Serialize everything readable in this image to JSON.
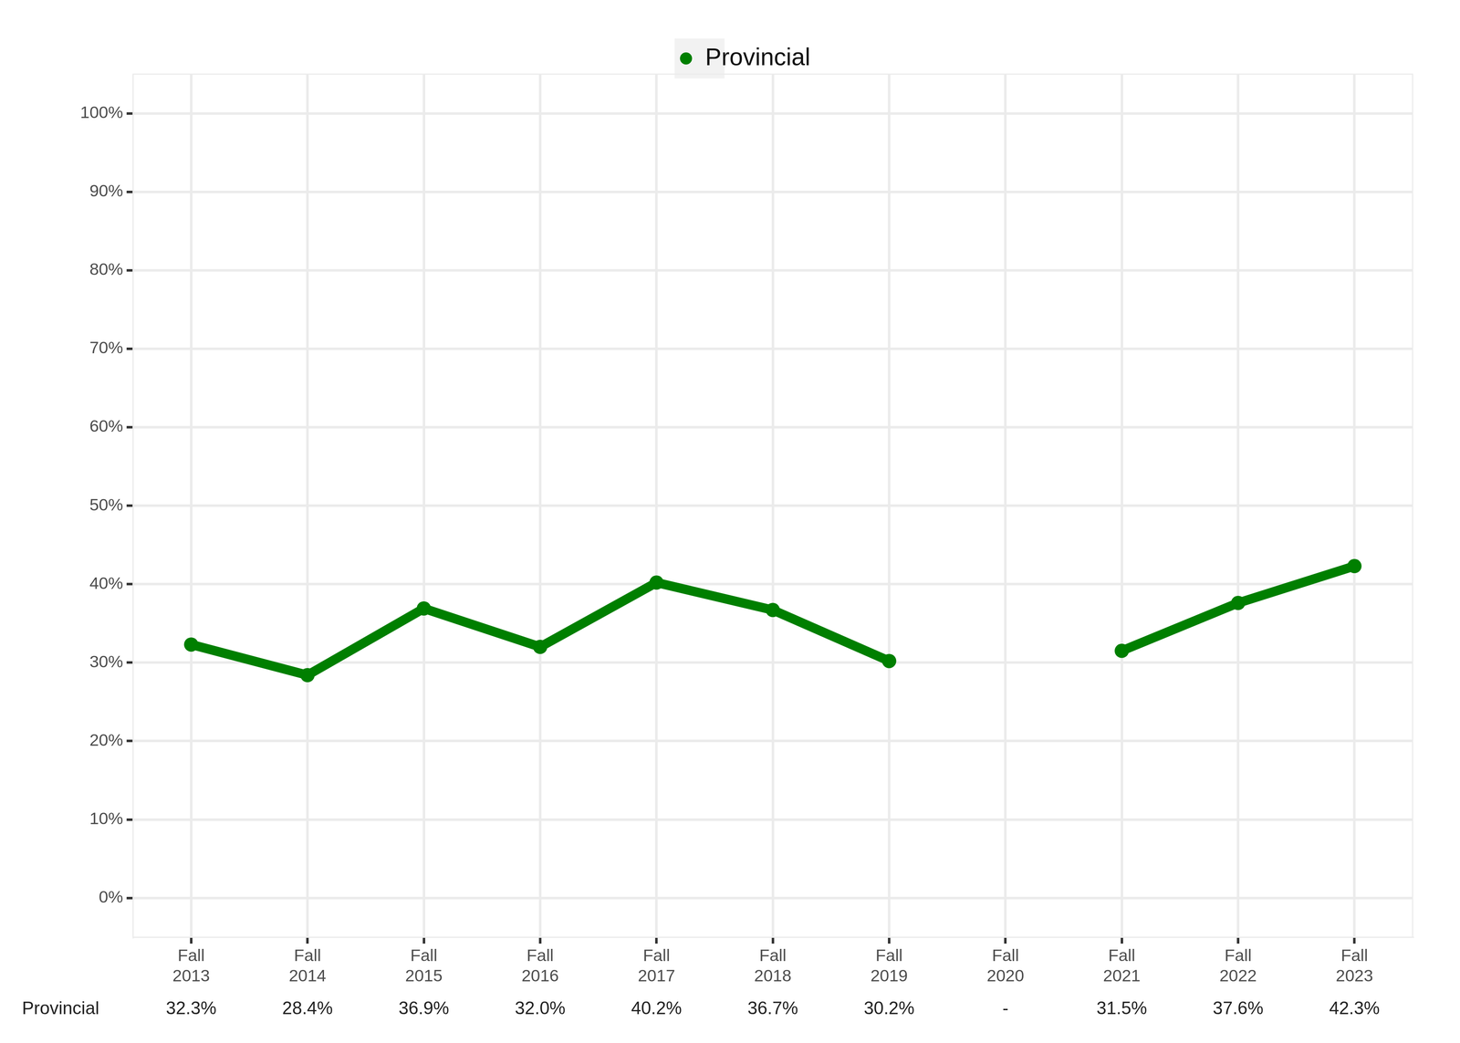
{
  "chart_data": {
    "type": "line",
    "categories": [
      "Fall 2013",
      "Fall 2014",
      "Fall 2015",
      "Fall 2016",
      "Fall 2017",
      "Fall 2018",
      "Fall 2019",
      "Fall 2020",
      "Fall 2021",
      "Fall 2022",
      "Fall 2023"
    ],
    "series": [
      {
        "name": "Provincial",
        "color": "#007f00",
        "marker": "circle",
        "values": [
          32.3,
          28.4,
          36.9,
          32.0,
          40.2,
          36.7,
          30.2,
          null,
          31.5,
          37.6,
          42.3
        ],
        "value_labels": [
          "32.3%",
          "28.4%",
          "36.9%",
          "32.0%",
          "40.2%",
          "36.7%",
          "30.2%",
          "-",
          "31.5%",
          "37.6%",
          "42.3%"
        ]
      }
    ],
    "ylim": [
      -5,
      105
    ],
    "yticks": [
      {
        "value": 0,
        "label": "0%"
      },
      {
        "value": 10,
        "label": "10%"
      },
      {
        "value": 20,
        "label": "20%"
      },
      {
        "value": 30,
        "label": "30%"
      },
      {
        "value": 40,
        "label": "40%"
      },
      {
        "value": 50,
        "label": "50%"
      },
      {
        "value": 60,
        "label": "60%"
      },
      {
        "value": 70,
        "label": "70%"
      },
      {
        "value": 80,
        "label": "80%"
      },
      {
        "value": 90,
        "label": "90%"
      },
      {
        "value": 100,
        "label": "100%"
      }
    ],
    "grid": true,
    "legend": "top",
    "data_labels": true
  }
}
